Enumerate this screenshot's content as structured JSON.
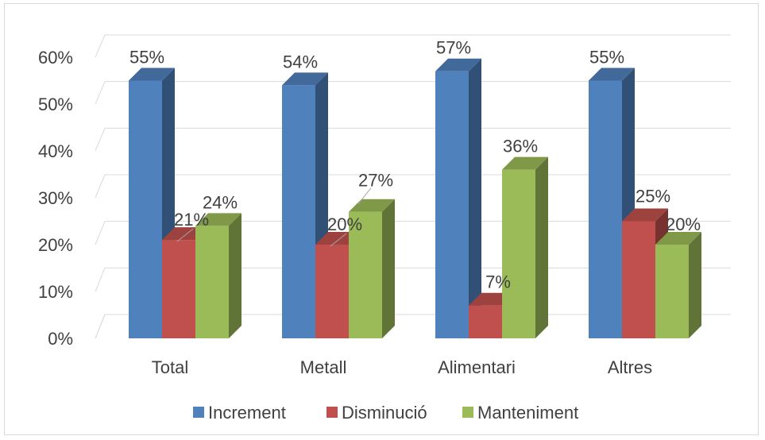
{
  "chart_data": {
    "type": "bar",
    "title": "",
    "xlabel": "",
    "ylabel": "",
    "categories": [
      "Total",
      "Metall",
      "Alimentari",
      "Altres"
    ],
    "series": [
      {
        "name": "Increment",
        "values": [
          55,
          54,
          57,
          55
        ],
        "labels": [
          "55%",
          "54%",
          "57%",
          "55%"
        ],
        "color": "#4f81bd"
      },
      {
        "name": "Disminució",
        "values": [
          21,
          20,
          7,
          25
        ],
        "labels": [
          "21%",
          "20%",
          "7%",
          "25%"
        ],
        "color": "#c0504d"
      },
      {
        "name": "Manteniment",
        "values": [
          24,
          27,
          36,
          20
        ],
        "labels": [
          "24%",
          "27%",
          "36%",
          "20%"
        ],
        "color": "#9bbb59"
      }
    ],
    "ylim": [
      0,
      60
    ],
    "yticks": [
      "0%",
      "10%",
      "20%",
      "30%",
      "40%",
      "50%",
      "60%"
    ],
    "grid": true,
    "style": "3d-clustered-column",
    "legend_position": "bottom"
  }
}
